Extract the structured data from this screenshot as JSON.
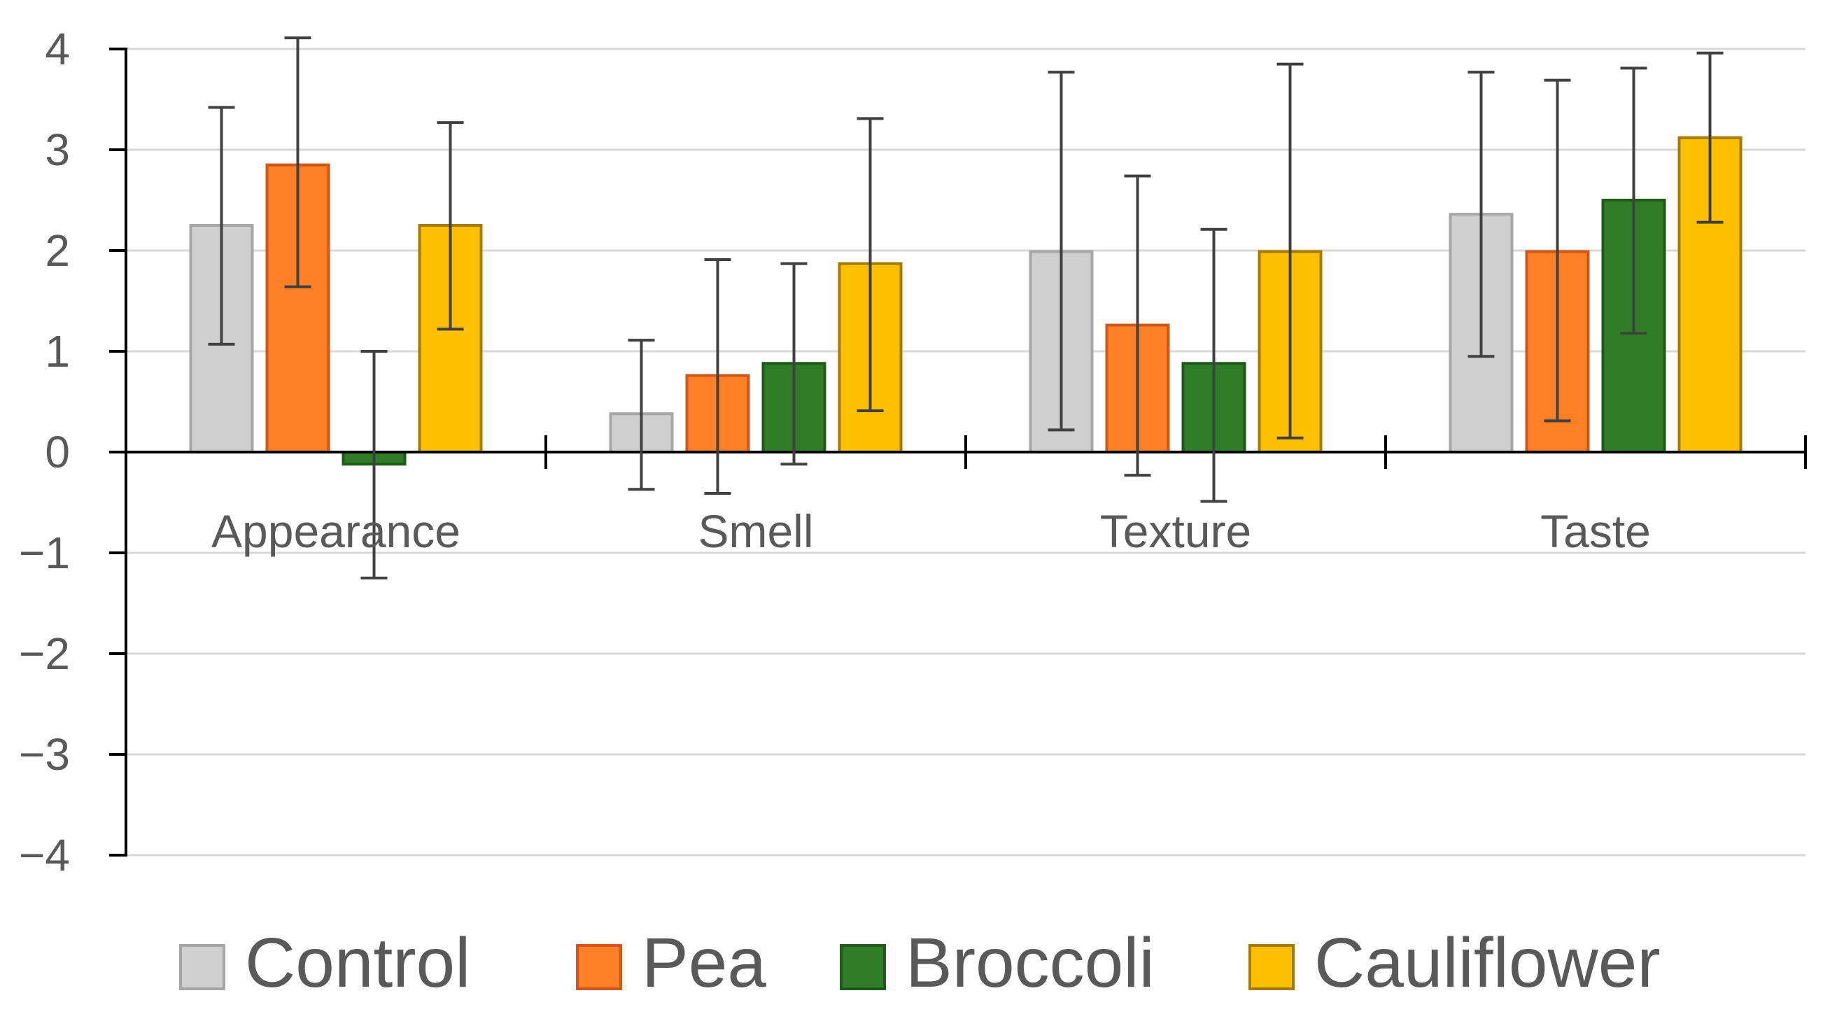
{
  "chart_data": {
    "type": "bar",
    "title": "",
    "xlabel": "",
    "ylabel": "",
    "ylim": [
      -4,
      4
    ],
    "yticks": [
      4,
      3,
      2,
      1,
      0,
      -1,
      -2,
      -3,
      -4
    ],
    "ytick_labels": [
      "4",
      "3",
      "2",
      "1",
      "0",
      "−1",
      "−2",
      "−3",
      "−4"
    ],
    "grid": true,
    "legend_position": "bottom",
    "categories": [
      "Appearance",
      "Smell",
      "Texture",
      "Taste"
    ],
    "series": [
      {
        "name": "Control",
        "color": "#d0cfcf",
        "border": "#a6a6a6",
        "values": [
          2.25,
          0.38,
          1.99,
          2.36
        ],
        "error_low": [
          1.07,
          -0.37,
          0.22,
          0.95
        ],
        "error_high": [
          3.42,
          1.11,
          3.77,
          3.77
        ]
      },
      {
        "name": "Pea",
        "color": "#fd7f26",
        "border": "#d0571b",
        "values": [
          2.85,
          0.76,
          1.26,
          1.99
        ],
        "error_low": [
          1.64,
          -0.41,
          -0.23,
          0.31
        ],
        "error_high": [
          4.11,
          1.91,
          2.74,
          3.69
        ]
      },
      {
        "name": "Broccoli",
        "color": "#2f7d27",
        "border": "#1f5a1a",
        "values": [
          -0.12,
          0.88,
          0.88,
          2.5
        ],
        "error_low": [
          -1.25,
          -0.12,
          -0.49,
          1.18
        ],
        "error_high": [
          1.0,
          1.87,
          2.21,
          3.81
        ]
      },
      {
        "name": "Cauliflower",
        "color": "#fec000",
        "border": "#a37b00",
        "values": [
          2.25,
          1.87,
          1.99,
          3.12
        ],
        "error_low": [
          1.22,
          0.41,
          0.14,
          2.28
        ],
        "error_high": [
          3.27,
          3.31,
          3.85,
          3.96
        ]
      }
    ]
  }
}
